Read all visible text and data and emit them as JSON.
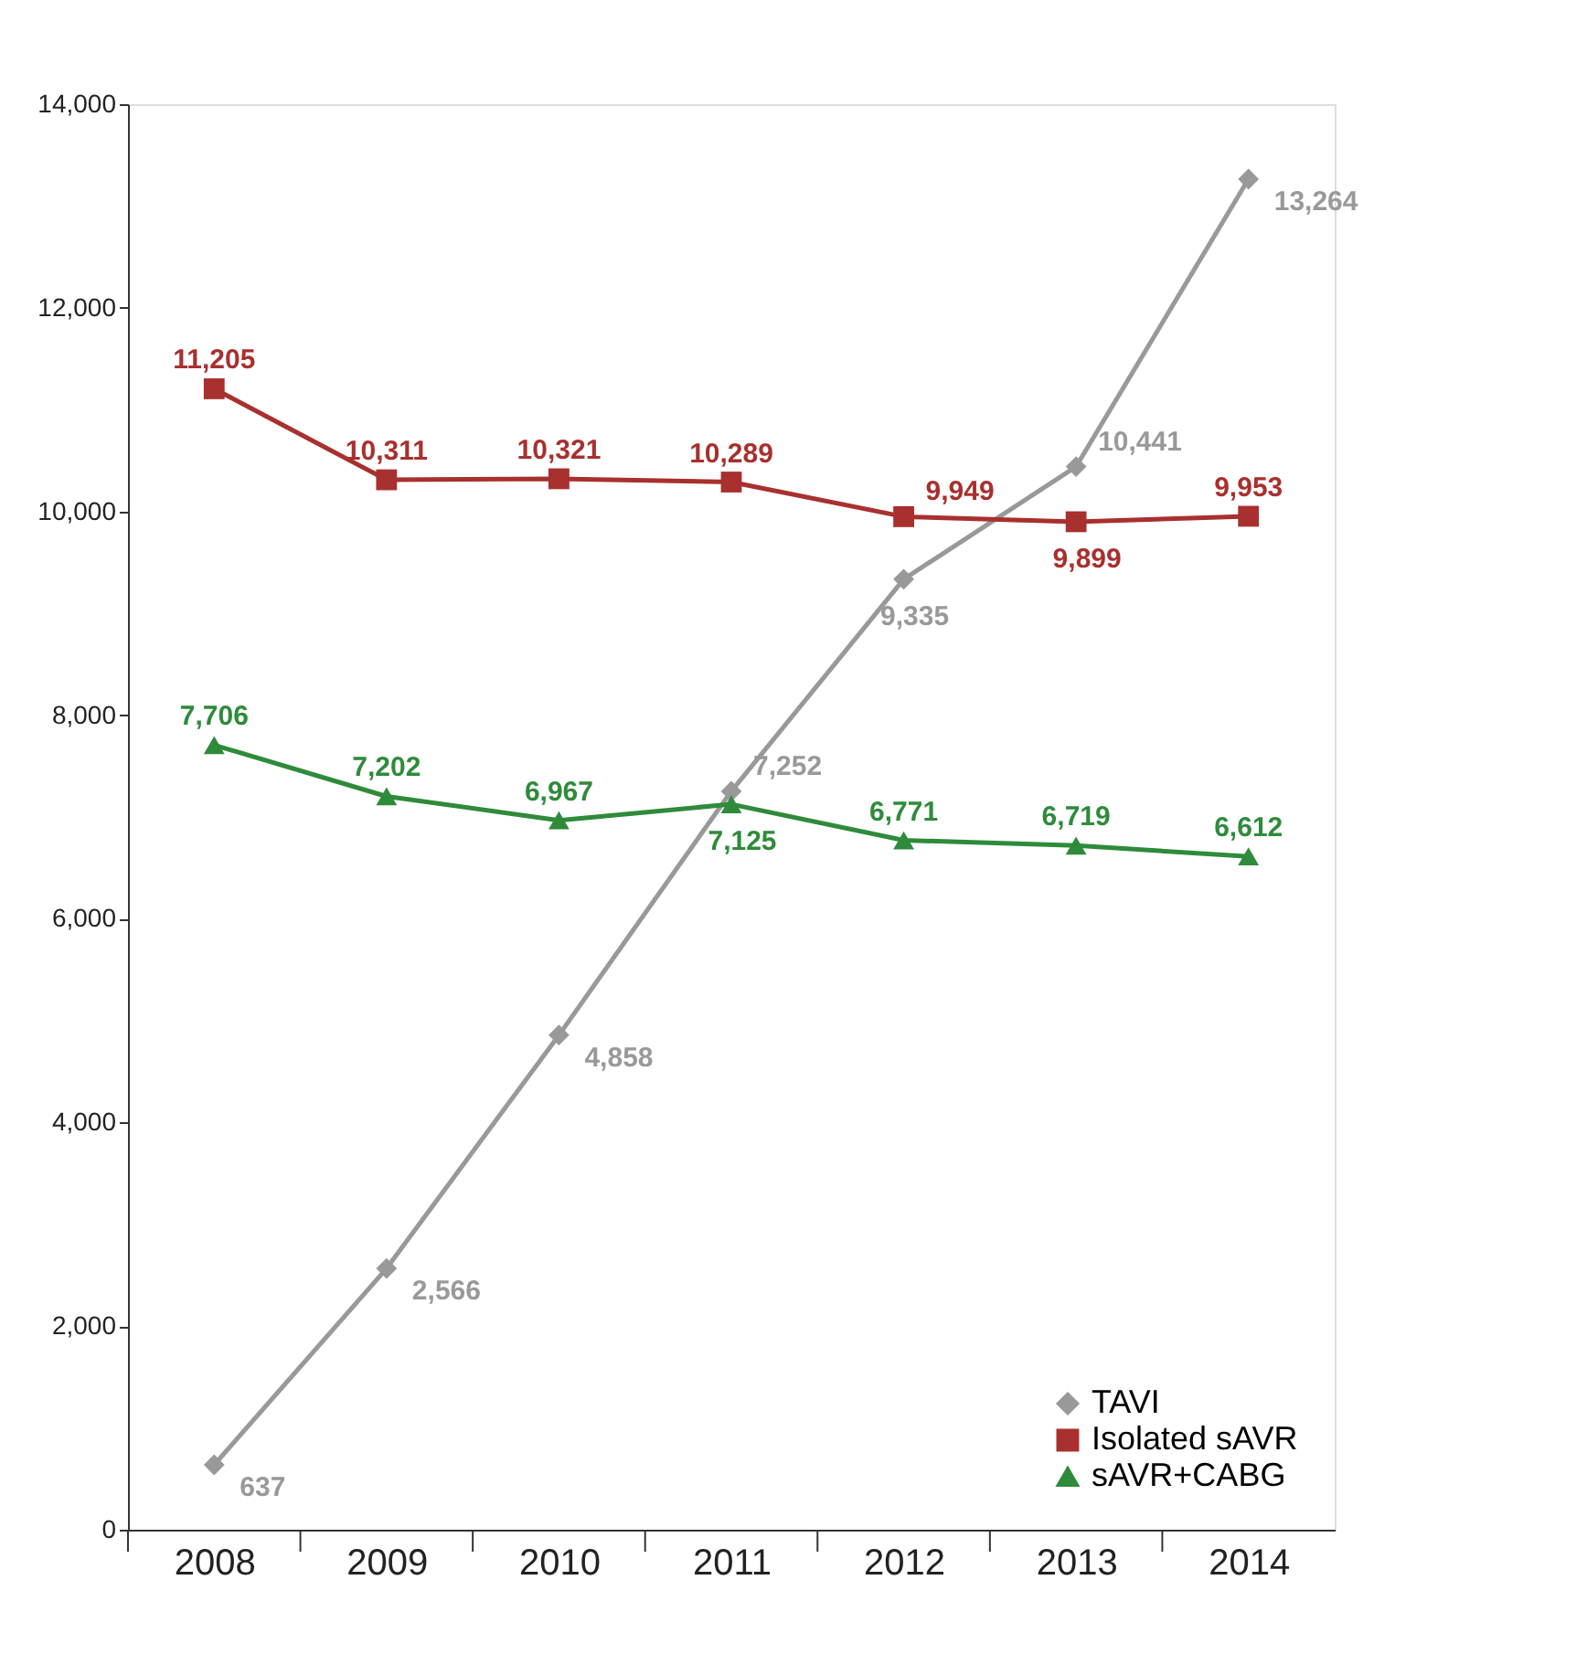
{
  "chart_data": {
    "type": "line",
    "categories": [
      "2008",
      "2009",
      "2010",
      "2011",
      "2012",
      "2013",
      "2014"
    ],
    "series": [
      {
        "name": "TAVI",
        "color": "#999999",
        "marker": "diamond",
        "values": [
          637,
          2566,
          4858,
          7252,
          9335,
          10441,
          13264
        ],
        "value_labels": [
          "637",
          "2,566",
          "4,858",
          "7,252",
          "9,335",
          "10,441",
          "13,264"
        ]
      },
      {
        "name": "Isolated sAVR",
        "color": "#a8302e",
        "marker": "square",
        "values": [
          11205,
          10311,
          10321,
          10289,
          9949,
          9899,
          9953
        ],
        "value_labels": [
          "11,205",
          "10,311",
          "10,321",
          "10,289",
          "9,949",
          "9,899",
          "9,953"
        ]
      },
      {
        "name": "sAVR+CABG",
        "color": "#2e8b3a",
        "marker": "triangle",
        "values": [
          7706,
          7202,
          6967,
          7125,
          6771,
          6719,
          6612
        ],
        "value_labels": [
          "7,706",
          "7,202",
          "6,967",
          "7,125",
          "6,771",
          "6,719",
          "6,612"
        ]
      }
    ],
    "ylim": [
      0,
      14000
    ],
    "yticks": [
      {
        "value": 0,
        "label": "0"
      },
      {
        "value": 2000,
        "label": "2,000"
      },
      {
        "value": 4000,
        "label": "4,000"
      },
      {
        "value": 6000,
        "label": "6,000"
      },
      {
        "value": 8000,
        "label": "8,000"
      },
      {
        "value": 10000,
        "label": "10,000"
      },
      {
        "value": 12000,
        "label": "12,000"
      },
      {
        "value": 14000,
        "label": "14,000"
      }
    ],
    "grid": false,
    "legend": "bottom right",
    "line_style": "solid"
  }
}
